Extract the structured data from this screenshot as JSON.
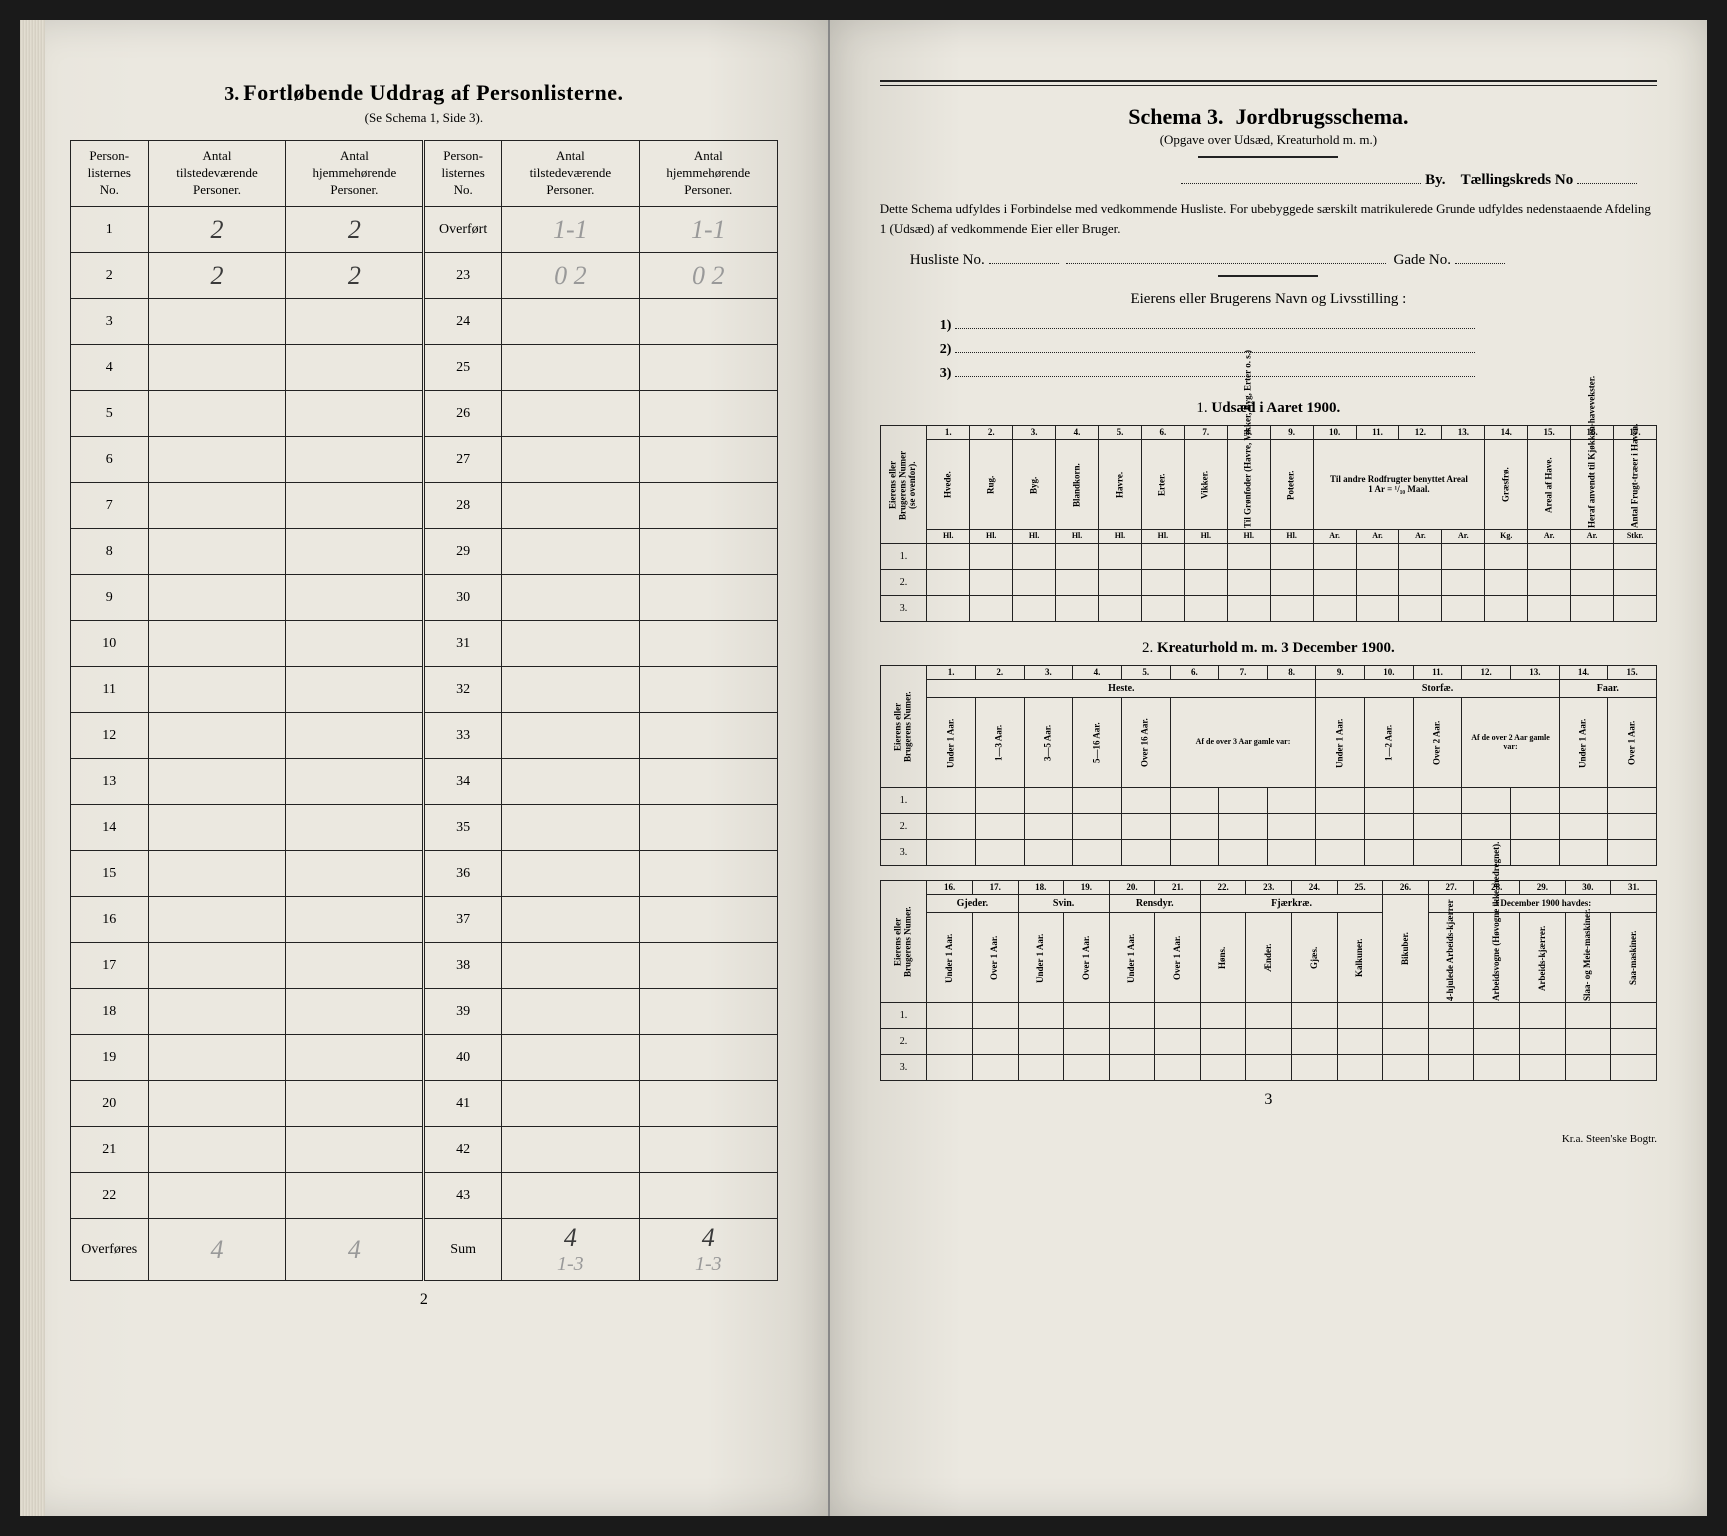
{
  "left": {
    "heading_num": "3.",
    "heading": "Fortløbende Uddrag af Personlisterne.",
    "subheading": "(Se Schema 1, Side 3).",
    "page_number": "2",
    "headers": {
      "no": "Person-\nlisternes\nNo.",
      "present": "Antal\ntilstedeværende\nPersoner.",
      "belonging": "Antal\nhjemmehørende\nPersoner."
    },
    "left_rows": [
      {
        "n": "1",
        "present": "2",
        "belonging": "2"
      },
      {
        "n": "2",
        "present": "2",
        "belonging": "2"
      },
      {
        "n": "3",
        "present": "",
        "belonging": ""
      },
      {
        "n": "4",
        "present": "",
        "belonging": ""
      },
      {
        "n": "5",
        "present": "",
        "belonging": ""
      },
      {
        "n": "6",
        "present": "",
        "belonging": ""
      },
      {
        "n": "7",
        "present": "",
        "belonging": ""
      },
      {
        "n": "8",
        "present": "",
        "belonging": ""
      },
      {
        "n": "9",
        "present": "",
        "belonging": ""
      },
      {
        "n": "10",
        "present": "",
        "belonging": ""
      },
      {
        "n": "11",
        "present": "",
        "belonging": ""
      },
      {
        "n": "12",
        "present": "",
        "belonging": ""
      },
      {
        "n": "13",
        "present": "",
        "belonging": ""
      },
      {
        "n": "14",
        "present": "",
        "belonging": ""
      },
      {
        "n": "15",
        "present": "",
        "belonging": ""
      },
      {
        "n": "16",
        "present": "",
        "belonging": ""
      },
      {
        "n": "17",
        "present": "",
        "belonging": ""
      },
      {
        "n": "18",
        "present": "",
        "belonging": ""
      },
      {
        "n": "19",
        "present": "",
        "belonging": ""
      },
      {
        "n": "20",
        "present": "",
        "belonging": ""
      },
      {
        "n": "21",
        "present": "",
        "belonging": ""
      },
      {
        "n": "22",
        "present": "",
        "belonging": ""
      }
    ],
    "overfores_label": "Overføres",
    "overfores_present": "4",
    "overfores_belonging": "4",
    "right_rows": [
      {
        "n": "Overført",
        "present": "1-1",
        "belonging": "1-1"
      },
      {
        "n": "23",
        "present": "0 2",
        "belonging": "0 2"
      },
      {
        "n": "24",
        "present": "",
        "belonging": ""
      },
      {
        "n": "25",
        "present": "",
        "belonging": ""
      },
      {
        "n": "26",
        "present": "",
        "belonging": ""
      },
      {
        "n": "27",
        "present": "",
        "belonging": ""
      },
      {
        "n": "28",
        "present": "",
        "belonging": ""
      },
      {
        "n": "29",
        "present": "",
        "belonging": ""
      },
      {
        "n": "30",
        "present": "",
        "belonging": ""
      },
      {
        "n": "31",
        "present": "",
        "belonging": ""
      },
      {
        "n": "32",
        "present": "",
        "belonging": ""
      },
      {
        "n": "33",
        "present": "",
        "belonging": ""
      },
      {
        "n": "34",
        "present": "",
        "belonging": ""
      },
      {
        "n": "35",
        "present": "",
        "belonging": ""
      },
      {
        "n": "36",
        "present": "",
        "belonging": ""
      },
      {
        "n": "37",
        "present": "",
        "belonging": ""
      },
      {
        "n": "38",
        "present": "",
        "belonging": ""
      },
      {
        "n": "39",
        "present": "",
        "belonging": ""
      },
      {
        "n": "40",
        "present": "",
        "belonging": ""
      },
      {
        "n": "41",
        "present": "",
        "belonging": ""
      },
      {
        "n": "42",
        "present": "",
        "belonging": ""
      },
      {
        "n": "43",
        "present": "",
        "belonging": ""
      }
    ],
    "sum_label": "Sum",
    "sum_present": "4",
    "sum_belonging": "4",
    "sum_below_present": "1-3",
    "sum_below_belonging": "1-3"
  },
  "right": {
    "schema_label": "Schema 3.",
    "schema_title": "Jordbrugsschema.",
    "schema_sub": "(Opgave over Udsæd, Kreaturhold m. m.)",
    "by_label": "By.",
    "kreds_label": "Tællingskreds No",
    "paragraph": "Dette Schema udfyldes i Forbindelse med vedkommende Husliste. For ubebyggede særskilt matrikulerede Grunde udfyldes nedenstaaende Afdeling 1 (Udsæd) af vedkommende Eier eller Bruger.",
    "husliste_label": "Husliste No.",
    "gade_label": "Gade No.",
    "owner_heading": "Eierens eller Brugerens Navn og Livsstilling :",
    "owner_lines": [
      "1)",
      "2)",
      "3)"
    ],
    "page_number": "3",
    "footer": "Kr.a.   Steen'ske Bogtr.",
    "section1": {
      "title_num": "1.",
      "title": "Udsæd i Aaret 1900.",
      "first_col": "Eierens eller\nBrugerens Numer\n(se ovenfor).",
      "col_nums": [
        "1.",
        "2.",
        "3.",
        "4.",
        "5.",
        "6.",
        "7.",
        "8.",
        "9.",
        "10.",
        "11.",
        "12.",
        "13.",
        "14.",
        "15.",
        "16.",
        "17."
      ],
      "cols": [
        "Hvede.",
        "Rug.",
        "Byg.",
        "Blandkorn.",
        "Havre.",
        "Erter.",
        "Vikker.",
        "Til Grønfoder (Havre, Vikker, Byg, Erter o. s.)",
        "Poteter.",
        "Gule-rødder.",
        "Tur-nips.",
        "Kaal-rabi.",
        "",
        "Græsfrø.",
        "Areal af Have.",
        "Heraf anvendt til Kjøkken-havevekster.",
        "Antal Frugt-træer i Haven."
      ],
      "group_rodfrugter": "Til andre Rodfrugter benyttet Areal\n1 Ar = ¹/₁₀ Maal.",
      "units": [
        "Hl.",
        "Hl.",
        "Hl.",
        "Hl.",
        "Hl.",
        "Hl.",
        "Hl.",
        "Hl.",
        "Hl.",
        "Ar.",
        "Ar.",
        "Ar.",
        "Ar.",
        "Kg.",
        "Ar.",
        "Ar.",
        "Stkr."
      ],
      "row_labels": [
        "1.",
        "2.",
        "3."
      ]
    },
    "section2": {
      "title_num": "2.",
      "title": "Kreaturhold m. m. 3 December 1900.",
      "first_col": "Eierens eller\nBrugerens Numer.",
      "col_nums_a": [
        "1.",
        "2.",
        "3.",
        "4.",
        "5.",
        "6.",
        "7.",
        "8.",
        "9.",
        "10.",
        "11.",
        "12.",
        "13.",
        "14.",
        "15."
      ],
      "group_heste": "Heste.",
      "group_storfe": "Storfæ.",
      "group_faar": "Faar.",
      "group_over3": "Af de over 3 Aar gamle var:",
      "group_over2": "Af de over 2 Aar gamle var:",
      "heste_cols": [
        "Under 1 Aar.",
        "1—3 Aar.",
        "3—5 Aar.",
        "5—16 Aar.",
        "Over 16 Aar.",
        "Hingste.",
        "Val-lakker.",
        "Hopper."
      ],
      "storfe_cols": [
        "1—2 Aar.",
        "Over 2 Aar.",
        "Oxer.",
        "Kjør."
      ],
      "extra_col": "Under 1 Aar.",
      "faar_cols": [
        "Under 1 Aar.",
        "Over 1 Aar."
      ],
      "row_labels": [
        "1.",
        "2.",
        "3."
      ],
      "col_nums_b": [
        "16.",
        "17.",
        "18.",
        "19.",
        "20.",
        "21.",
        "22.",
        "23.",
        "24.",
        "25.",
        "26.",
        "27.",
        "28.",
        "29.",
        "30.",
        "31."
      ],
      "group_gjeder": "Gjeder.",
      "group_svin": "Svin.",
      "group_rensdyr": "Rensdyr.",
      "group_fjerkre": "Fjærkræ.",
      "group_dec": "3 December 1900 havdes:",
      "b_cols": [
        "Under 1 Aar.",
        "Over 1 Aar.",
        "Under 1 Aar.",
        "Over 1 Aar.",
        "Under 1 Aar.",
        "Over 1 Aar.",
        "Høns.",
        "Ænder.",
        "Gjæs.",
        "Kalkuner.",
        "Bikuber.",
        "4-hjulede Arbeids-kjærrer",
        "Arbeidsvogne (Høvogne ikke medregnet).",
        "Arbeids-kjærrer.",
        "Slaa- og Meie-maskiner.",
        "Saa-maskiner."
      ]
    }
  }
}
